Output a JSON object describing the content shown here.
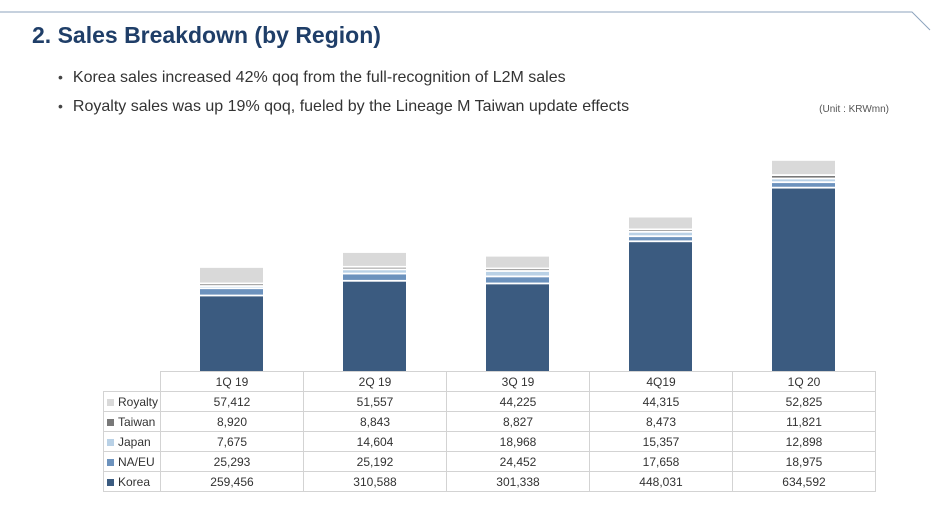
{
  "header": {
    "title": "2. Sales Breakdown (by Region)",
    "bullets": [
      "Korea sales increased 42% qoq from the full-recognition of L2M sales",
      "Royalty sales was up 19% qoq, fueled by the Lineage M Taiwan update effects"
    ],
    "unit": "(Unit : KRWmn)"
  },
  "chart_data": {
    "type": "bar",
    "stacked": true,
    "title": "",
    "xlabel": "",
    "ylabel": "",
    "ylim": [
      0,
      800000
    ],
    "categories": [
      "1Q 19",
      "2Q 19",
      "3Q 19",
      "4Q19",
      "1Q 20"
    ],
    "series": [
      {
        "name": "Korea",
        "color": "#3b5b80",
        "values": [
          259456,
          310588,
          301338,
          448031,
          634592
        ]
      },
      {
        "name": "NA/EU",
        "color": "#6c92bd",
        "values": [
          25293,
          25192,
          24452,
          17658,
          18975
        ]
      },
      {
        "name": "Japan",
        "color": "#b9d1e6",
        "values": [
          7675,
          14604,
          18968,
          15357,
          12898
        ]
      },
      {
        "name": "Taiwan",
        "color": "#787878",
        "values": [
          8920,
          8843,
          8827,
          8473,
          11821
        ]
      },
      {
        "name": "Royalty",
        "color": "#d9d9d9",
        "values": [
          57412,
          51557,
          44225,
          44315,
          52825
        ]
      }
    ],
    "table_rows": [
      {
        "name": "Royalty",
        "color": "#d9d9d9",
        "cells": [
          "57,412",
          "51,557",
          "44,225",
          "44,315",
          "52,825"
        ]
      },
      {
        "name": "Taiwan",
        "color": "#787878",
        "cells": [
          "8,920",
          "8,843",
          "8,827",
          "8,473",
          "11,821"
        ]
      },
      {
        "name": "Japan",
        "color": "#b9d1e6",
        "cells": [
          "7,675",
          "14,604",
          "18,968",
          "15,357",
          "12,898"
        ]
      },
      {
        "name": "NA/EU",
        "color": "#6c92bd",
        "cells": [
          "25,293",
          "25,192",
          "24,452",
          "17,658",
          "18,975"
        ]
      },
      {
        "name": "Korea",
        "color": "#3b5b80",
        "cells": [
          "259,456",
          "310,588",
          "301,338",
          "448,031",
          "634,592"
        ]
      }
    ]
  }
}
